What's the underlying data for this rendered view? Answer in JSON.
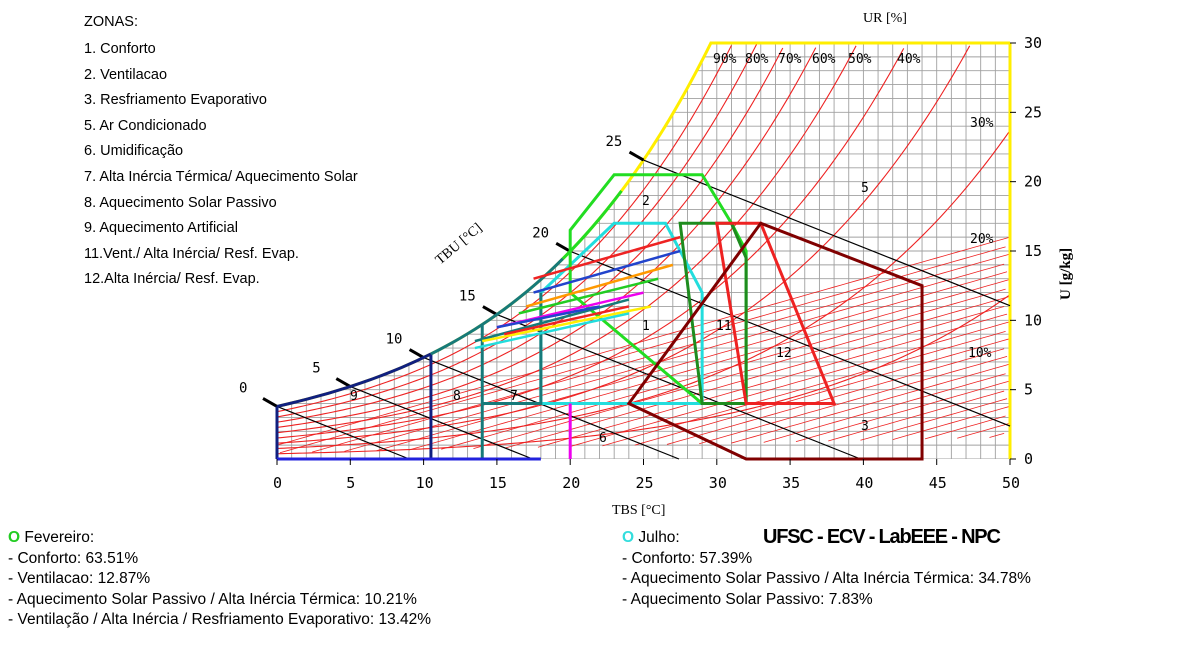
{
  "zones_title": "ZONAS:",
  "zones": [
    "1. Conforto",
    "2. Ventilacao",
    "3. Resfriamento Evaporativo",
    "5. Ar Condicionado",
    "6. Umidificação",
    "7. Alta Inércia Térmica/ Aquecimento Solar",
    "8. Aquecimento Solar Passivo",
    "9. Aquecimento Artificial",
    "11.Vent./ Alta Inércia/ Resf. Evap.",
    "12.Alta Inércia/ Resf. Evap."
  ],
  "brand": "UFSC - ECV - LabEEE - NPC",
  "legends": [
    {
      "marker": "O",
      "marker_color": "#22cc22",
      "title": "Fevereiro:",
      "items": [
        "- Conforto: 63.51%",
        "- Ventilacao: 12.87%",
        "- Aquecimento Solar Passivo / Alta Inércia Térmica: 10.21%",
        "- Ventilação / Alta Inércia / Resfriamento Evaporativo: 13.42%"
      ]
    },
    {
      "marker": "O",
      "marker_color": "#33dddd",
      "title": "Julho:",
      "items": [
        "- Conforto: 57.39%",
        "- Aquecimento Solar Passivo / Alta Inércia Térmica: 34.78%",
        "- Aquecimento Solar Passivo: 7.83%"
      ]
    }
  ],
  "chart_data": {
    "type": "psychrometric",
    "xlabel": "TBS [°C]",
    "ylabel": "U [g/kg]",
    "rh_label": "UR [%]",
    "wb_label": "TBU [°C]",
    "xlim": [
      0,
      50
    ],
    "ylim": [
      0,
      30
    ],
    "x_ticks": [
      "0",
      "5",
      "10",
      "15",
      "20",
      "25",
      "30",
      "35",
      "40",
      "45",
      "50"
    ],
    "y_ticks": [
      "0",
      "5",
      "10",
      "15",
      "20",
      "25",
      "30"
    ],
    "rh_labels": [
      "90%",
      "80%",
      "70%",
      "60%",
      "50%",
      "40%",
      "30%",
      "20%",
      "10%"
    ],
    "wb_labels": [
      "0",
      "5",
      "10",
      "15",
      "20",
      "25"
    ],
    "zone_numbers": [
      "1",
      "2",
      "3",
      "5",
      "6",
      "7",
      "8",
      "9",
      "11",
      "12"
    ],
    "colors": {
      "grid": "#a0a0a0",
      "rh": "#ee2222",
      "wb": "#000000",
      "saturation": "#ffee00",
      "comfort": "#22dddd",
      "ventilation": "#22dd22",
      "thermal_mass": "#1e8c1e",
      "evap_mass": "#ee2222",
      "evaporative": "#800000",
      "solar": "#167a7a",
      "artificial": "#102080",
      "humidification": "#ee00ee",
      "axis_bottom": "#2222dd"
    },
    "zones": [
      {
        "id": "1",
        "name": "Conforto",
        "polygon": [
          [
            18,
            4
          ],
          [
            29,
            4
          ],
          [
            29,
            12
          ],
          [
            26.5,
            17
          ],
          [
            23,
            17
          ],
          [
            18,
            12
          ]
        ]
      },
      {
        "id": "2",
        "name": "Ventilacao",
        "polygon": [
          [
            20,
            12
          ],
          [
            20,
            16.5
          ],
          [
            21.5,
            18.5
          ],
          [
            23,
            20.5
          ],
          [
            29,
            20.5
          ],
          [
            31,
            17
          ],
          [
            32,
            15
          ],
          [
            32,
            4
          ],
          [
            29,
            4
          ]
        ]
      },
      {
        "id": "11",
        "name": "Vent./ Alta Inércia/ Resf. Evap.",
        "polygon": [
          [
            29,
            4
          ],
          [
            32,
            4
          ],
          [
            32,
            14.5
          ],
          [
            31,
            17
          ],
          [
            27.5,
            17
          ]
        ]
      },
      {
        "id": "12",
        "name": "Alta Inércia/ Resf. Evap.",
        "polygon": [
          [
            32,
            4
          ],
          [
            38,
            4
          ],
          [
            33,
            17
          ],
          [
            30,
            17
          ]
        ]
      },
      {
        "id": "3",
        "name": "Resfriamento Evaporativo",
        "polygon": [
          [
            24,
            4
          ],
          [
            32,
            0
          ],
          [
            44,
            0
          ],
          [
            44,
            12.5
          ],
          [
            33,
            17
          ]
        ]
      }
    ],
    "series": [
      {
        "name": "Fevereiro",
        "lines": [
          [
            [
              17.5,
              13
            ],
            [
              27.5,
              16
            ]
          ],
          [
            [
              17.5,
              12
            ],
            [
              27.5,
              15
            ]
          ],
          [
            [
              17,
              11
            ],
            [
              27,
              14
            ]
          ],
          [
            [
              16.5,
              10.5
            ],
            [
              26,
              13
            ]
          ],
          [
            [
              15,
              9.5
            ],
            [
              25,
              12
            ]
          ],
          [
            [
              13.5,
              8.5
            ],
            [
              24,
              11.5
            ]
          ],
          [
            [
              13.5,
              8
            ],
            [
              24,
              10.5
            ]
          ],
          [
            [
              14,
              8.5
            ],
            [
              25.5,
              11
            ]
          ]
        ]
      },
      {
        "name": "Julho",
        "lines": [
          [
            [
              15.5,
              9
            ],
            [
              24,
              11
            ]
          ],
          [
            [
              15,
              9.5
            ],
            [
              22,
              11
            ]
          ]
        ]
      }
    ]
  }
}
